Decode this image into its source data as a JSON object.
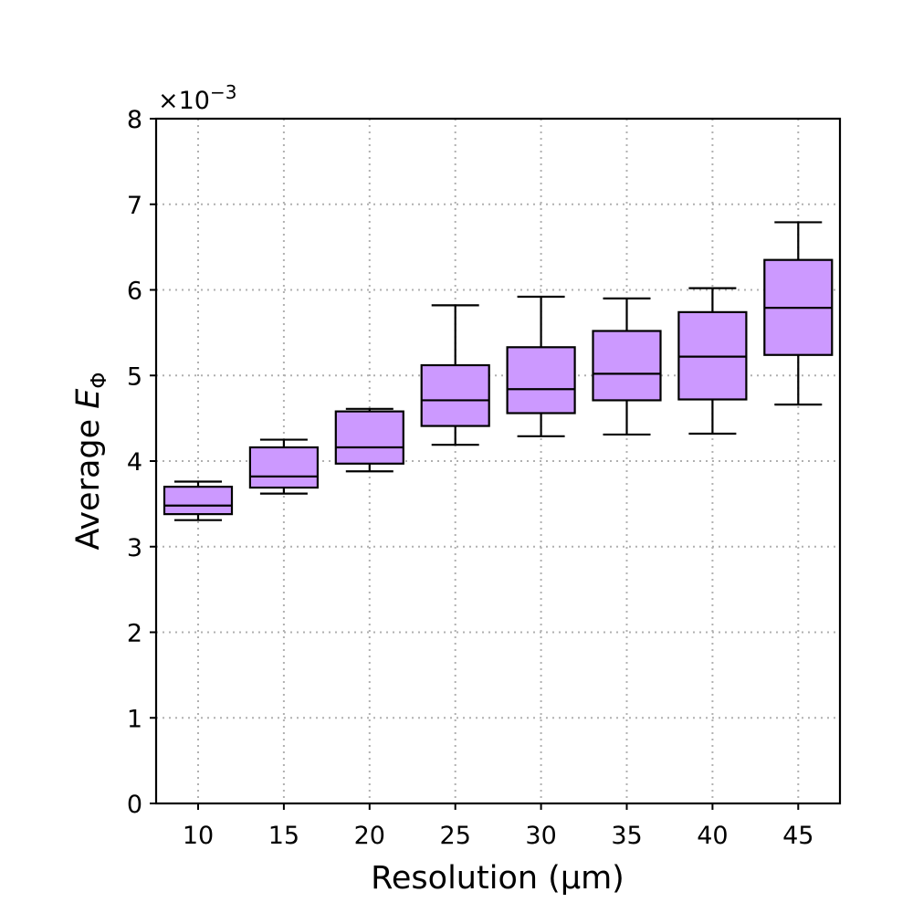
{
  "chart_data": {
    "type": "box",
    "categories": [
      "10",
      "15",
      "20",
      "25",
      "30",
      "35",
      "40",
      "45"
    ],
    "xlabel": "Resolution (μm)",
    "ylabel_prefix": "Average ",
    "ylabel_symbol": "E",
    "ylabel_subscript": "Φ",
    "ylim": [
      0,
      8
    ],
    "yticks": [
      0,
      1,
      2,
      3,
      4,
      5,
      6,
      7,
      8
    ],
    "ytick_labels": [
      "0",
      "1",
      "2",
      "3",
      "4",
      "5",
      "6",
      "7",
      "8"
    ],
    "y_scale_base": "×10",
    "y_scale_exponent": "−3",
    "grid": true,
    "box_color": "#cc99ff",
    "series": [
      {
        "category": "10",
        "whislo": 3.31,
        "q1": 3.38,
        "median": 3.48,
        "q3": 3.7,
        "whishi": 3.76
      },
      {
        "category": "15",
        "whislo": 3.62,
        "q1": 3.69,
        "median": 3.82,
        "q3": 4.16,
        "whishi": 4.25
      },
      {
        "category": "20",
        "whislo": 3.88,
        "q1": 3.97,
        "median": 4.16,
        "q3": 4.58,
        "whishi": 4.61
      },
      {
        "category": "25",
        "whislo": 4.19,
        "q1": 4.41,
        "median": 4.71,
        "q3": 5.12,
        "whishi": 5.82
      },
      {
        "category": "30",
        "whislo": 4.29,
        "q1": 4.56,
        "median": 4.84,
        "q3": 5.33,
        "whishi": 5.92
      },
      {
        "category": "35",
        "whislo": 4.31,
        "q1": 4.71,
        "median": 5.02,
        "q3": 5.52,
        "whishi": 5.9
      },
      {
        "category": "40",
        "whislo": 4.32,
        "q1": 4.72,
        "median": 5.22,
        "q3": 5.74,
        "whishi": 6.02
      },
      {
        "category": "45",
        "whislo": 4.66,
        "q1": 5.24,
        "median": 5.79,
        "q3": 6.35,
        "whishi": 6.79
      }
    ]
  }
}
